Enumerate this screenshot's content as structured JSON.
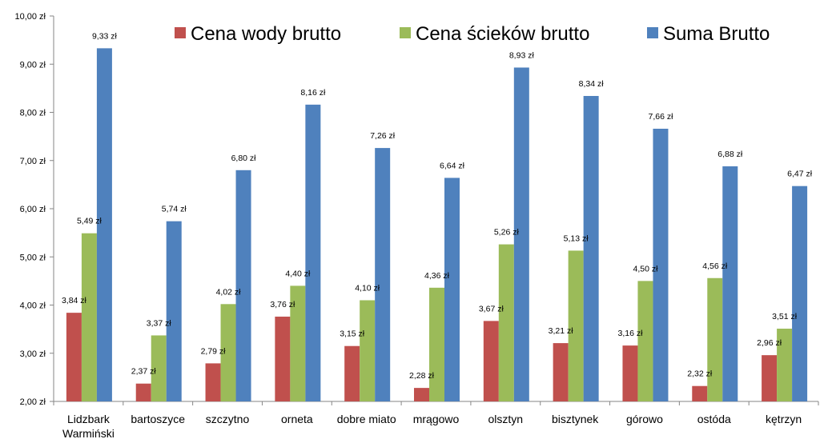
{
  "chart_data": {
    "type": "bar",
    "categories": [
      [
        "Lidzbark",
        "Warmiński"
      ],
      [
        "bartoszyce"
      ],
      [
        "szczytno"
      ],
      [
        "orneta"
      ],
      [
        "dobre miato"
      ],
      [
        "mrągowo"
      ],
      [
        "olsztyn"
      ],
      [
        "bisztynek"
      ],
      [
        "górowo"
      ],
      [
        "ostóda"
      ],
      [
        "kętrzyn"
      ]
    ],
    "series": [
      {
        "name": "Cena wody brutto",
        "color": "#c0504d",
        "values": [
          3.84,
          2.37,
          2.79,
          3.76,
          3.15,
          2.28,
          3.67,
          3.21,
          3.16,
          2.32,
          2.96
        ],
        "labels": [
          "3,84 zł",
          "2,37 zł",
          "2,79 zł",
          "3,76 zł",
          "3,15 zł",
          "2,28 zł",
          "3,67 zł",
          "3,21 zł",
          "3,16 zł",
          "2,32 zł",
          "2,96 zł"
        ]
      },
      {
        "name": "Cena ścieków brutto",
        "color": "#9bbb59",
        "values": [
          5.49,
          3.37,
          4.02,
          4.4,
          4.1,
          4.36,
          5.26,
          5.13,
          4.5,
          4.56,
          3.51
        ],
        "labels": [
          "5,49 zł",
          "3,37 zł",
          "4,02 zł",
          "4,40 zł",
          "4,10 zł",
          "4,36 zł",
          "5,26 zł",
          "5,13 zł",
          "4,50 zł",
          "4,56 zł",
          "3,51 zł"
        ]
      },
      {
        "name": "Suma Brutto",
        "color": "#4f81bd",
        "values": [
          9.33,
          5.74,
          6.8,
          8.16,
          7.26,
          6.64,
          8.93,
          8.34,
          7.66,
          6.88,
          6.47
        ],
        "labels": [
          "9,33 zł",
          "5,74 zł",
          "6,80 zł",
          "8,16 zł",
          "7,26 zł",
          "6,64 zł",
          "8,93 zł",
          "8,34 zł",
          "7,66 zł",
          "6,88 zł",
          "6,47 zł"
        ]
      }
    ],
    "ylim": [
      2.0,
      10.0
    ],
    "yticks": [
      {
        "value": 2.0,
        "label": "2,00 zł"
      },
      {
        "value": 3.0,
        "label": "3,00 zł"
      },
      {
        "value": 4.0,
        "label": "4,00 zł"
      },
      {
        "value": 5.0,
        "label": "5,00 zł"
      },
      {
        "value": 6.0,
        "label": "6,00 zł"
      },
      {
        "value": 7.0,
        "label": "7,00 zł"
      },
      {
        "value": 8.0,
        "label": "8,00 zł"
      },
      {
        "value": 9.0,
        "label": "9,00 zł"
      },
      {
        "value": 10.0,
        "label": "10,00 zł"
      }
    ],
    "grid": false,
    "legend_position": "top",
    "axis_color": "#868686"
  }
}
